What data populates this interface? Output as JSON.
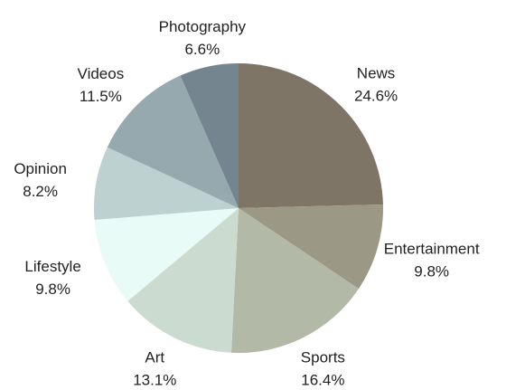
{
  "chart_data": {
    "type": "pie",
    "title": "",
    "start_angle_deg": 0,
    "direction": "clockwise",
    "slices": [
      {
        "label": "News",
        "value": 24.6,
        "display": "24.6%",
        "color": "#7f7566"
      },
      {
        "label": "Entertainment",
        "value": 9.8,
        "display": "9.8%",
        "color": "#9b9985"
      },
      {
        "label": "Sports",
        "value": 16.4,
        "display": "16.4%",
        "color": "#b2b9a6"
      },
      {
        "label": "Art",
        "value": 13.1,
        "display": "13.1%",
        "color": "#ccdbcf"
      },
      {
        "label": "Lifestyle",
        "value": 9.8,
        "display": "9.8%",
        "color": "#e8fbf6"
      },
      {
        "label": "Opinion",
        "value": 8.2,
        "display": "8.2%",
        "color": "#bdd1d1"
      },
      {
        "label": "Videos",
        "value": 11.5,
        "display": "11.5%",
        "color": "#96a9ae"
      },
      {
        "label": "Photography",
        "value": 6.6,
        "display": "6.6%",
        "color": "#758590"
      }
    ]
  }
}
